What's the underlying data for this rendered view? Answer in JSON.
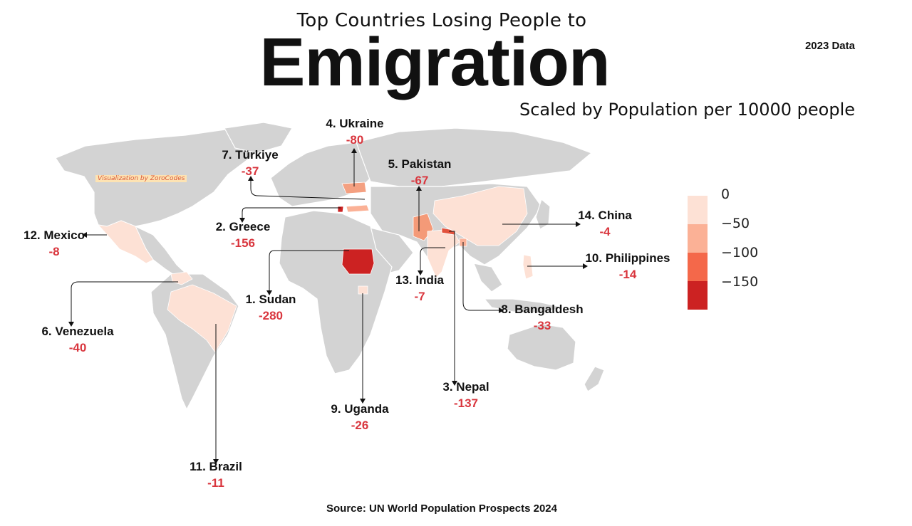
{
  "header": {
    "subtitle": "Top Countries Losing People to",
    "title": "Emigration",
    "year": "2023 Data",
    "scale_note": "Scaled by Population per 10000 people"
  },
  "watermark": "Visualization by ZoroCodes",
  "source": "Source: UN World Population Prospects 2024",
  "colors": {
    "land": "#d3d3d3",
    "border": "#ffffff",
    "level0": "#fde1d5",
    "level1": "#fbb196",
    "level2": "#f4684a",
    "level3": "#cc2222",
    "value_text": "#d9363e"
  },
  "legend": {
    "labels": [
      "0",
      "−50",
      "−100",
      "−150"
    ]
  },
  "countries": [
    {
      "rank": "1. Sudan",
      "value": "-280"
    },
    {
      "rank": "2. Greece",
      "value": "-156"
    },
    {
      "rank": "3. Nepal",
      "value": "-137"
    },
    {
      "rank": "4. Ukraine",
      "value": "-80"
    },
    {
      "rank": "5. Pakistan",
      "value": "-67"
    },
    {
      "rank": "6. Venezuela",
      "value": "-40"
    },
    {
      "rank": "7. Türkiye",
      "value": "-37"
    },
    {
      "rank": "8. Bangaldesh",
      "value": "-33"
    },
    {
      "rank": "9. Uganda",
      "value": "-26"
    },
    {
      "rank": "10. Philippines",
      "value": "-14"
    },
    {
      "rank": "11. Brazil",
      "value": "-11"
    },
    {
      "rank": "12. Mexico",
      "value": "-8"
    },
    {
      "rank": "13. India",
      "value": "-7"
    },
    {
      "rank": "14. China",
      "value": "-4"
    }
  ]
}
